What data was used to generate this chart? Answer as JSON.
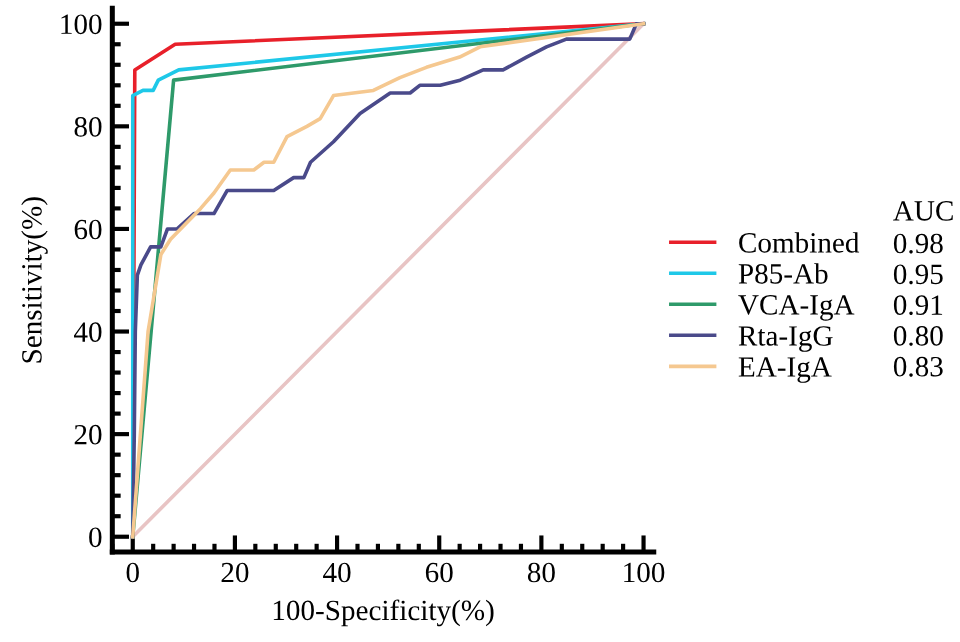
{
  "chart_data": {
    "type": "line",
    "xlabel": "100-Specificity(%)",
    "ylabel": "Sensitivity(%)",
    "xlim": [
      -4,
      102
    ],
    "ylim": [
      -3,
      103
    ],
    "xticks": [
      0,
      20,
      40,
      60,
      80,
      100
    ],
    "yticks": [
      0,
      20,
      40,
      60,
      80,
      100
    ],
    "grid": false,
    "legend": "right",
    "legend_title": "AUC",
    "marker": "none",
    "line_style": "solid",
    "annotations": [
      "0.98",
      "0.95",
      "0.91",
      "0.80",
      "0.83"
    ],
    "series": [
      {
        "color": "#e8c4c4",
        "x": [
          0,
          100
        ],
        "values": [
          0,
          100
        ]
      },
      {
        "name": "Combined",
        "color": "#e8202a",
        "x": [
          0,
          0.4,
          8.3,
          100
        ],
        "values": [
          0,
          91,
          96,
          100
        ]
      },
      {
        "name": "P85-Ab",
        "color": "#1ec8e8",
        "x": [
          0,
          0,
          2,
          4,
          5,
          9,
          100
        ],
        "values": [
          0,
          86,
          87,
          87,
          89,
          91,
          100
        ]
      },
      {
        "name": "VCA-IgA",
        "color": "#2e9a6a",
        "x": [
          0,
          8,
          100
        ],
        "values": [
          0,
          89,
          100
        ]
      },
      {
        "name": "Rta-IgG",
        "color": "#4a4a8a",
        "x": [
          0,
          0.3,
          0.5,
          0.9,
          1.6,
          3.5,
          5.5,
          6.8,
          8.7,
          12,
          15.9,
          18.5,
          27.6,
          31.5,
          33.5,
          34.8,
          39.3,
          44.5,
          50.4,
          54.3,
          56.2,
          60.2,
          64.1,
          68.6,
          72.5,
          77.1,
          81,
          84.9,
          97.3,
          98.6,
          100
        ],
        "values": [
          0,
          20,
          40,
          51,
          53,
          56.5,
          56.5,
          60,
          60,
          63,
          63,
          67.5,
          67.5,
          70,
          70,
          73,
          77,
          82.5,
          86.5,
          86.5,
          88,
          88,
          89,
          91,
          91,
          93.5,
          95.5,
          97,
          97,
          100,
          100
        ]
      },
      {
        "name": "EA-IgA",
        "color": "#f5c890",
        "x": [
          0,
          3,
          5.5,
          7.4,
          13.3,
          15.9,
          19.1,
          23.7,
          25.7,
          27.6,
          30.2,
          34.1,
          36.7,
          39.3,
          43.2,
          47.1,
          52.3,
          57.5,
          64,
          68,
          100
        ],
        "values": [
          0,
          40,
          55,
          58,
          64,
          67,
          71.5,
          71.5,
          73,
          73,
          78,
          80,
          81.5,
          86,
          86.5,
          87,
          89.5,
          91.5,
          93.5,
          95.5,
          100
        ]
      }
    ]
  }
}
